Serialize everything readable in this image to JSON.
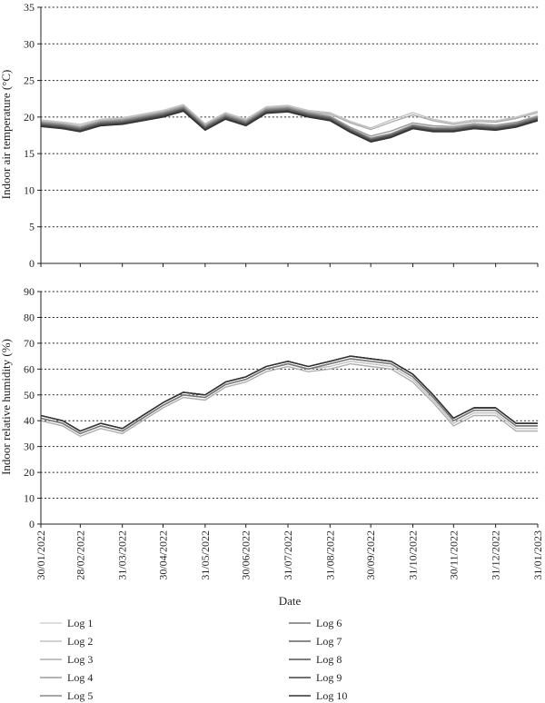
{
  "chart_data": [
    {
      "type": "line",
      "ylabel": "Indoor air temperature (°C)",
      "ylim": [
        0,
        35
      ],
      "yticks": [
        0,
        5,
        10,
        15,
        20,
        25,
        30,
        35
      ],
      "grid": "horizontal dotted",
      "x": [
        "30/01/2022",
        "15/02/2022",
        "28/02/2022",
        "15/03/2022",
        "31/03/2022",
        "15/04/2022",
        "30/04/2022",
        "15/05/2022",
        "31/05/2022",
        "15/06/2022",
        "30/06/2022",
        "15/07/2022",
        "31/07/2022",
        "15/08/2022",
        "31/08/2022",
        "15/09/2022",
        "30/09/2022",
        "15/10/2022",
        "31/10/2022",
        "15/11/2022",
        "30/11/2022",
        "15/12/2022",
        "31/12/2022",
        "15/01/2023",
        "31/01/2023"
      ],
      "series": [
        {
          "name": "Log 1",
          "values": [
            19.5,
            19.2,
            18.8,
            19.6,
            19.8,
            20.3,
            20.8,
            21.6,
            19.0,
            20.5,
            19.6,
            21.3,
            21.5,
            20.8,
            20.2,
            18.5,
            17.2,
            17.8,
            19.0,
            18.6,
            18.6,
            19.0,
            18.8,
            19.2,
            20.3
          ]
        },
        {
          "name": "Log 2",
          "values": [
            19.6,
            19.3,
            19.0,
            19.7,
            19.9,
            20.4,
            20.9,
            21.7,
            19.1,
            20.6,
            19.7,
            21.4,
            21.6,
            20.9,
            20.6,
            19.4,
            18.5,
            19.6,
            20.6,
            19.7,
            19.2,
            19.6,
            19.5,
            20.0,
            20.8
          ]
        },
        {
          "name": "Log 3",
          "values": [
            19.4,
            19.1,
            18.7,
            19.5,
            19.7,
            20.2,
            20.7,
            21.5,
            18.9,
            20.4,
            19.5,
            21.2,
            21.4,
            20.7,
            20.4,
            19.2,
            18.3,
            19.3,
            20.3,
            19.5,
            19.0,
            19.4,
            19.3,
            19.8,
            20.6
          ]
        },
        {
          "name": "Log 4",
          "values": [
            19.3,
            19.0,
            18.6,
            19.4,
            19.6,
            20.1,
            20.6,
            21.4,
            18.8,
            20.3,
            19.4,
            21.1,
            21.3,
            20.6,
            20.1,
            18.6,
            17.4,
            18.1,
            19.2,
            18.8,
            18.7,
            19.1,
            18.9,
            19.3,
            20.1
          ]
        },
        {
          "name": "Log 5",
          "values": [
            19.2,
            18.9,
            18.5,
            19.3,
            19.5,
            20.0,
            20.5,
            21.3,
            18.7,
            20.2,
            19.3,
            21.0,
            21.2,
            20.5,
            20.0,
            18.4,
            17.1,
            17.7,
            18.9,
            18.5,
            18.5,
            18.9,
            18.7,
            19.1,
            20.0
          ]
        },
        {
          "name": "Log 6",
          "values": [
            19.1,
            18.8,
            18.4,
            19.2,
            19.4,
            19.9,
            20.4,
            21.2,
            18.6,
            20.1,
            19.2,
            20.9,
            21.1,
            20.4,
            19.9,
            18.3,
            17.0,
            17.6,
            18.8,
            18.4,
            18.4,
            18.8,
            18.6,
            19.0,
            19.9
          ]
        },
        {
          "name": "Log 7",
          "values": [
            19.0,
            18.7,
            18.3,
            19.1,
            19.3,
            19.8,
            20.3,
            21.1,
            18.5,
            20.0,
            19.1,
            20.8,
            21.0,
            20.3,
            19.8,
            18.2,
            16.9,
            17.5,
            18.7,
            18.3,
            18.3,
            18.7,
            18.5,
            18.9,
            19.8
          ]
        },
        {
          "name": "Log 8",
          "values": [
            18.9,
            18.6,
            18.2,
            19.0,
            19.2,
            19.7,
            20.2,
            21.0,
            18.4,
            19.9,
            19.0,
            20.7,
            20.9,
            20.2,
            19.7,
            18.1,
            16.8,
            17.4,
            18.6,
            18.2,
            18.2,
            18.6,
            18.4,
            18.8,
            19.7
          ]
        },
        {
          "name": "Log 9",
          "values": [
            18.8,
            18.5,
            18.1,
            18.9,
            19.1,
            19.6,
            20.1,
            20.9,
            18.3,
            19.8,
            18.9,
            20.6,
            20.8,
            20.1,
            19.6,
            18.0,
            16.7,
            17.3,
            18.5,
            18.1,
            18.1,
            18.5,
            18.3,
            18.7,
            19.6
          ]
        },
        {
          "name": "Log 10",
          "values": [
            18.7,
            18.4,
            18.0,
            18.8,
            19.0,
            19.5,
            20.0,
            20.8,
            18.2,
            19.7,
            18.8,
            20.5,
            20.7,
            20.0,
            19.5,
            17.9,
            16.6,
            17.2,
            18.4,
            18.0,
            18.0,
            18.4,
            18.2,
            18.6,
            19.5
          ]
        }
      ]
    },
    {
      "type": "line",
      "xlabel": "Date",
      "ylabel": "Indoor relative humidity (%)",
      "ylim": [
        0,
        90
      ],
      "yticks": [
        0,
        10,
        20,
        30,
        40,
        50,
        60,
        70,
        80,
        90
      ],
      "grid": "horizontal dotted",
      "x": [
        "30/01/2022",
        "15/02/2022",
        "28/02/2022",
        "15/03/2022",
        "31/03/2022",
        "15/04/2022",
        "30/04/2022",
        "15/05/2022",
        "31/05/2022",
        "15/06/2022",
        "30/06/2022",
        "15/07/2022",
        "31/07/2022",
        "15/08/2022",
        "31/08/2022",
        "15/09/2022",
        "30/09/2022",
        "15/10/2022",
        "31/10/2022",
        "15/11/2022",
        "30/11/2022",
        "15/12/2022",
        "31/12/2022",
        "15/01/2023",
        "31/01/2023"
      ],
      "xticks": [
        "30/01/2022",
        "28/02/2022",
        "31/03/2022",
        "30/04/2022",
        "31/05/2022",
        "30/06/2022",
        "31/07/2022",
        "31/08/2022",
        "30/09/2022",
        "31/10/2022",
        "30/11/2022",
        "31/12/2022",
        "31/01/2023"
      ],
      "series": [
        {
          "name": "Log 1",
          "values": [
            41,
            39,
            35,
            38,
            36,
            41,
            46,
            50,
            49,
            54,
            56,
            60,
            62,
            60,
            62,
            64,
            63,
            62,
            57,
            49,
            40,
            44,
            44,
            38,
            38
          ]
        },
        {
          "name": "Log 2",
          "values": [
            41,
            39,
            35,
            38,
            36,
            41,
            46,
            50,
            49,
            54,
            56,
            60,
            62,
            60,
            61,
            63,
            62,
            61,
            56,
            48,
            39,
            43,
            43,
            37,
            37
          ]
        },
        {
          "name": "Log 3",
          "values": [
            40,
            38,
            34,
            37,
            35,
            40,
            45,
            49,
            48,
            53,
            55,
            59,
            61,
            59,
            60,
            62,
            61,
            60,
            55,
            47,
            38,
            42,
            42,
            36,
            36
          ]
        },
        {
          "name": "Log 4",
          "values": [
            41,
            39,
            35,
            38,
            36,
            41,
            46,
            50,
            49,
            54,
            56,
            60,
            62,
            60,
            62,
            64,
            63,
            62,
            57,
            49,
            40,
            44,
            44,
            38,
            38
          ]
        },
        {
          "name": "Log 5",
          "values": [
            41,
            39,
            35,
            38,
            36,
            41,
            46,
            50,
            49,
            54,
            56,
            60,
            62,
            60,
            62,
            64,
            63,
            62,
            57,
            49,
            40,
            44,
            44,
            38,
            38
          ]
        },
        {
          "name": "Log 6",
          "values": [
            41,
            39,
            35,
            38,
            36,
            41,
            46,
            50,
            49,
            54,
            56,
            60,
            62,
            60,
            62,
            64,
            63,
            62,
            57,
            49,
            40,
            44,
            44,
            38,
            38
          ]
        },
        {
          "name": "Log 7",
          "values": [
            42,
            40,
            36,
            39,
            37,
            42,
            47,
            51,
            50,
            55,
            57,
            61,
            63,
            61,
            63,
            65,
            64,
            63,
            58,
            50,
            41,
            45,
            45,
            39,
            39
          ]
        },
        {
          "name": "Log 8",
          "values": [
            42,
            40,
            36,
            39,
            37,
            42,
            47,
            51,
            50,
            55,
            57,
            61,
            63,
            61,
            63,
            65,
            64,
            63,
            58,
            50,
            41,
            45,
            45,
            39,
            39
          ]
        },
        {
          "name": "Log 9",
          "values": [
            42,
            40,
            36,
            39,
            37,
            42,
            47,
            51,
            50,
            55,
            57,
            61,
            63,
            61,
            63,
            65,
            64,
            63,
            58,
            50,
            41,
            45,
            45,
            39,
            39
          ]
        },
        {
          "name": "Log 10",
          "values": [
            42,
            40,
            36,
            39,
            37,
            42,
            47,
            51,
            50,
            55,
            57,
            61,
            63,
            61,
            63,
            65,
            64,
            63,
            58,
            50,
            41,
            45,
            45,
            39,
            39
          ]
        }
      ]
    }
  ],
  "legend": {
    "position": "bottom",
    "items": [
      {
        "label": "Log 1",
        "color": "#d4d4d4"
      },
      {
        "label": "Log 2",
        "color": "#c2c2c2"
      },
      {
        "label": "Log 3",
        "color": "#aeaeae"
      },
      {
        "label": "Log 4",
        "color": "#9b9b9b"
      },
      {
        "label": "Log 5",
        "color": "#888888"
      },
      {
        "label": "Log 6",
        "color": "#767676"
      },
      {
        "label": "Log 7",
        "color": "#646464"
      },
      {
        "label": "Log 8",
        "color": "#535353"
      },
      {
        "label": "Log 9",
        "color": "#424242"
      },
      {
        "label": "Log 10",
        "color": "#333333"
      }
    ]
  },
  "colors": {
    "axis": "#231f20",
    "grid": "#231f20"
  }
}
